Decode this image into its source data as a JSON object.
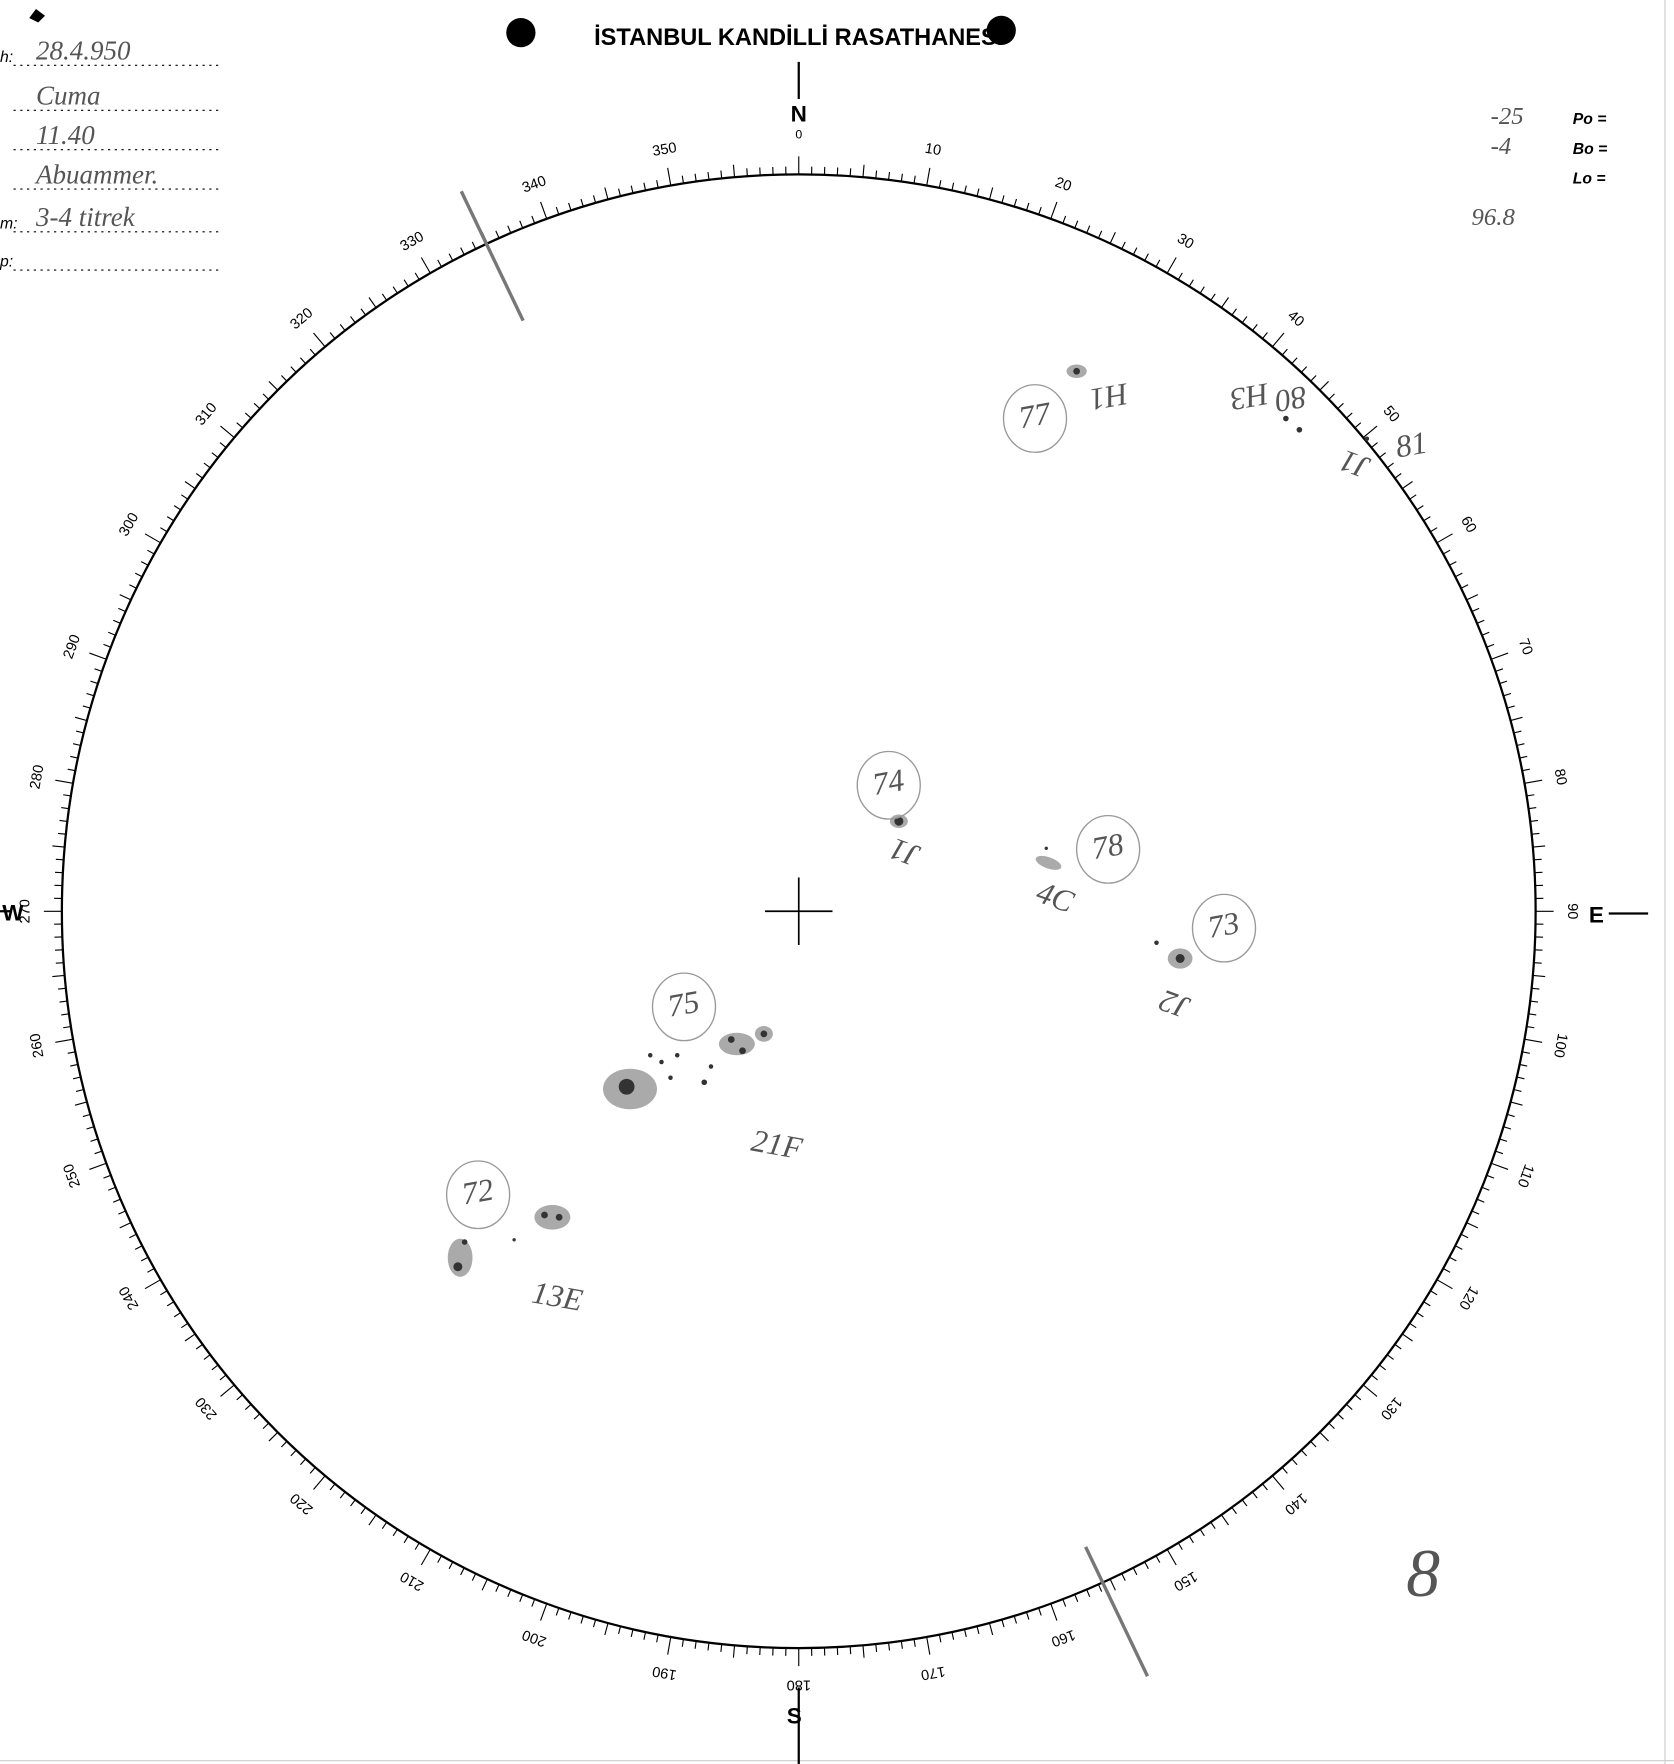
{
  "header": {
    "title": "İSTANBUL KANDİLLİ RASATHANESİ"
  },
  "form": {
    "rows": [
      {
        "label": "h:",
        "value": "28.4.950"
      },
      {
        "value": "Cuma"
      },
      {
        "value": "11.40"
      },
      {
        "value": "Abuammer."
      },
      {
        "label": "m:",
        "value": "3-4 titrek"
      },
      {
        "label": "p:"
      }
    ]
  },
  "params": {
    "rows": [
      {
        "value": "-25",
        "label": "Po ="
      },
      {
        "value": "-4",
        "label": "Bo ="
      },
      {
        "label": "Lo ="
      },
      {
        "value": "96.8"
      }
    ]
  },
  "compass": {
    "north": "N",
    "north_deg": "0",
    "east": "E",
    "south": "S",
    "west": "W"
  },
  "dial": {
    "labels": [
      10,
      20,
      30,
      40,
      50,
      60,
      70,
      80,
      90,
      100,
      110,
      120,
      130,
      140,
      150,
      160,
      170,
      180,
      190,
      200,
      210,
      220,
      230,
      240,
      250,
      260,
      270,
      280,
      290,
      300,
      310,
      320,
      330,
      340,
      350
    ]
  },
  "annotations": [
    {
      "text": "77",
      "circled": true
    },
    {
      "text": "H1"
    },
    {
      "text": "H3"
    },
    {
      "text": "80"
    },
    {
      "text": "J1"
    },
    {
      "text": "81"
    },
    {
      "text": "74",
      "circled": true
    },
    {
      "text": "J1"
    },
    {
      "text": "78",
      "circled": true
    },
    {
      "text": "4C"
    },
    {
      "text": "73",
      "circled": true
    },
    {
      "text": "J2"
    },
    {
      "text": "75",
      "circled": true
    },
    {
      "text": "21F"
    },
    {
      "text": "72",
      "circled": true
    },
    {
      "text": "13E"
    },
    {
      "text": "8"
    }
  ]
}
